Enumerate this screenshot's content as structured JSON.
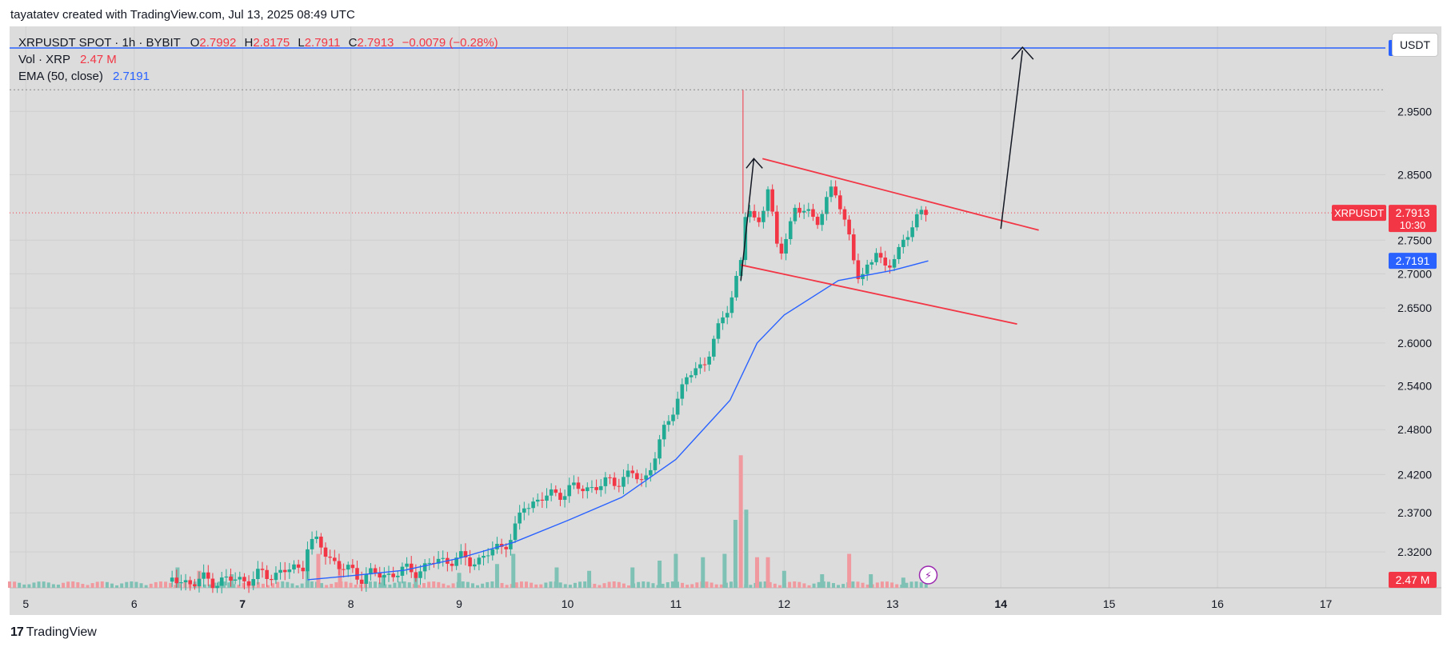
{
  "attribution": "tayatatev created with TradingView.com, Jul 13, 2025 08:49 UTC",
  "footer": {
    "brand": "TradingView"
  },
  "toolbar": {
    "currency": "USDT"
  },
  "legend": {
    "symbol": "XRPUSDT SPOT · 1h · BYBIT",
    "o_label": "O",
    "o": "2.7992",
    "h_label": "H",
    "h": "2.8175",
    "l_label": "L",
    "l": "2.7911",
    "c_label": "C",
    "c": "2.7913",
    "change": "−0.0079 (−0.28%)",
    "vol_label": "Vol · XRP",
    "vol": "2.47 M",
    "ema_label": "EMA (50, close)",
    "ema": "2.7191"
  },
  "colors": {
    "up": "#22ab94",
    "down": "#f23645",
    "ema": "#2962ff",
    "resistance": "#2962ff",
    "channel": "#f23645",
    "arrow": "#131722",
    "vol_up": "#7fc2b5",
    "vol_down": "#f09a9f"
  },
  "chart_data": {
    "type": "candlestick",
    "symbol": "XRPUSDT",
    "interval": "1h",
    "x_ticks": [
      "5",
      "6",
      "7",
      "8",
      "9",
      "10",
      "11",
      "12",
      "13",
      "14",
      "15",
      "16",
      "17"
    ],
    "x_range_days": [
      4.85,
      17.55
    ],
    "y_ticks": [
      "2.9500",
      "2.8500",
      "2.7500",
      "2.7000",
      "2.6500",
      "2.6000",
      "2.5400",
      "2.4800",
      "2.4200",
      "2.3700",
      "2.3200"
    ],
    "y_range": [
      2.275,
      3.09
    ],
    "scale": "log",
    "last_price_label": "XRPUSDT",
    "last_price": "2.7913",
    "countdown": "10:30",
    "ema_value_label": "2.7191",
    "volume_label": "2.47 M",
    "resistance_label": "3.0538",
    "resistance_level": 3.0538,
    "dotted_high": 2.985,
    "ema_path": [
      [
        7.6,
        2.285
      ],
      [
        8.0,
        2.29
      ],
      [
        8.5,
        2.297
      ],
      [
        9.0,
        2.312
      ],
      [
        9.5,
        2.332
      ],
      [
        10.0,
        2.36
      ],
      [
        10.5,
        2.39
      ],
      [
        11.0,
        2.44
      ],
      [
        11.5,
        2.52
      ],
      [
        11.75,
        2.6
      ],
      [
        12.0,
        2.64
      ],
      [
        12.5,
        2.69
      ],
      [
        13.0,
        2.705
      ],
      [
        13.33,
        2.7191
      ]
    ],
    "price_path": [
      [
        4.85,
        2.28
      ],
      [
        6.5,
        2.283
      ],
      [
        7.0,
        2.285
      ],
      [
        7.55,
        2.3
      ],
      [
        7.6,
        2.33
      ],
      [
        7.7,
        2.33
      ],
      [
        7.9,
        2.3
      ],
      [
        8.1,
        2.29
      ],
      [
        8.35,
        2.292
      ],
      [
        8.7,
        2.3
      ],
      [
        8.8,
        2.31
      ],
      [
        9.2,
        2.31
      ],
      [
        9.5,
        2.34
      ],
      [
        9.6,
        2.38
      ],
      [
        9.8,
        2.39
      ],
      [
        10.0,
        2.4
      ],
      [
        10.3,
        2.405
      ],
      [
        10.6,
        2.42
      ],
      [
        10.7,
        2.41
      ],
      [
        10.85,
        2.46
      ],
      [
        11.0,
        2.52
      ],
      [
        11.1,
        2.55
      ],
      [
        11.25,
        2.57
      ],
      [
        11.4,
        2.62
      ],
      [
        11.5,
        2.66
      ],
      [
        11.6,
        2.72
      ],
      [
        11.65,
        2.8
      ],
      [
        11.75,
        2.77
      ],
      [
        11.85,
        2.83
      ],
      [
        11.95,
        2.72
      ],
      [
        12.1,
        2.8
      ],
      [
        12.3,
        2.78
      ],
      [
        12.45,
        2.83
      ],
      [
        12.6,
        2.76
      ],
      [
        12.7,
        2.68
      ],
      [
        12.85,
        2.74
      ],
      [
        12.95,
        2.7
      ],
      [
        13.1,
        2.75
      ],
      [
        13.2,
        2.78
      ],
      [
        13.33,
        2.7913
      ]
    ],
    "volume_bars": [
      {
        "t": 6.4,
        "v": 0.3,
        "up": true
      },
      {
        "t": 6.6,
        "v": 0.25,
        "up": false
      },
      {
        "t": 6.9,
        "v": 0.2,
        "up": true
      },
      {
        "t": 7.6,
        "v": 0.55,
        "up": true
      },
      {
        "t": 7.7,
        "v": 0.5,
        "up": false
      },
      {
        "t": 7.9,
        "v": 0.35,
        "up": false
      },
      {
        "t": 8.3,
        "v": 0.18,
        "up": true
      },
      {
        "t": 8.6,
        "v": 0.2,
        "up": true
      },
      {
        "t": 9.0,
        "v": 0.22,
        "up": true
      },
      {
        "t": 9.35,
        "v": 0.35,
        "up": true
      },
      {
        "t": 9.5,
        "v": 0.5,
        "up": true
      },
      {
        "t": 9.9,
        "v": 0.3,
        "up": true
      },
      {
        "t": 10.2,
        "v": 0.25,
        "up": true
      },
      {
        "t": 10.6,
        "v": 0.3,
        "up": true
      },
      {
        "t": 10.85,
        "v": 0.4,
        "up": true
      },
      {
        "t": 11.0,
        "v": 0.5,
        "up": true
      },
      {
        "t": 11.25,
        "v": 0.45,
        "up": true
      },
      {
        "t": 11.45,
        "v": 0.5,
        "up": true
      },
      {
        "t": 11.55,
        "v": 1.0,
        "up": true
      },
      {
        "t": 11.6,
        "v": 1.95,
        "up": false
      },
      {
        "t": 11.65,
        "v": 1.15,
        "up": true
      },
      {
        "t": 11.75,
        "v": 0.45,
        "up": false
      },
      {
        "t": 11.85,
        "v": 0.45,
        "up": false
      },
      {
        "t": 12.0,
        "v": 0.25,
        "up": true
      },
      {
        "t": 12.35,
        "v": 0.2,
        "up": true
      },
      {
        "t": 12.6,
        "v": 0.5,
        "up": false
      },
      {
        "t": 12.8,
        "v": 0.2,
        "up": true
      },
      {
        "t": 13.1,
        "v": 0.15,
        "up": true
      }
    ]
  }
}
